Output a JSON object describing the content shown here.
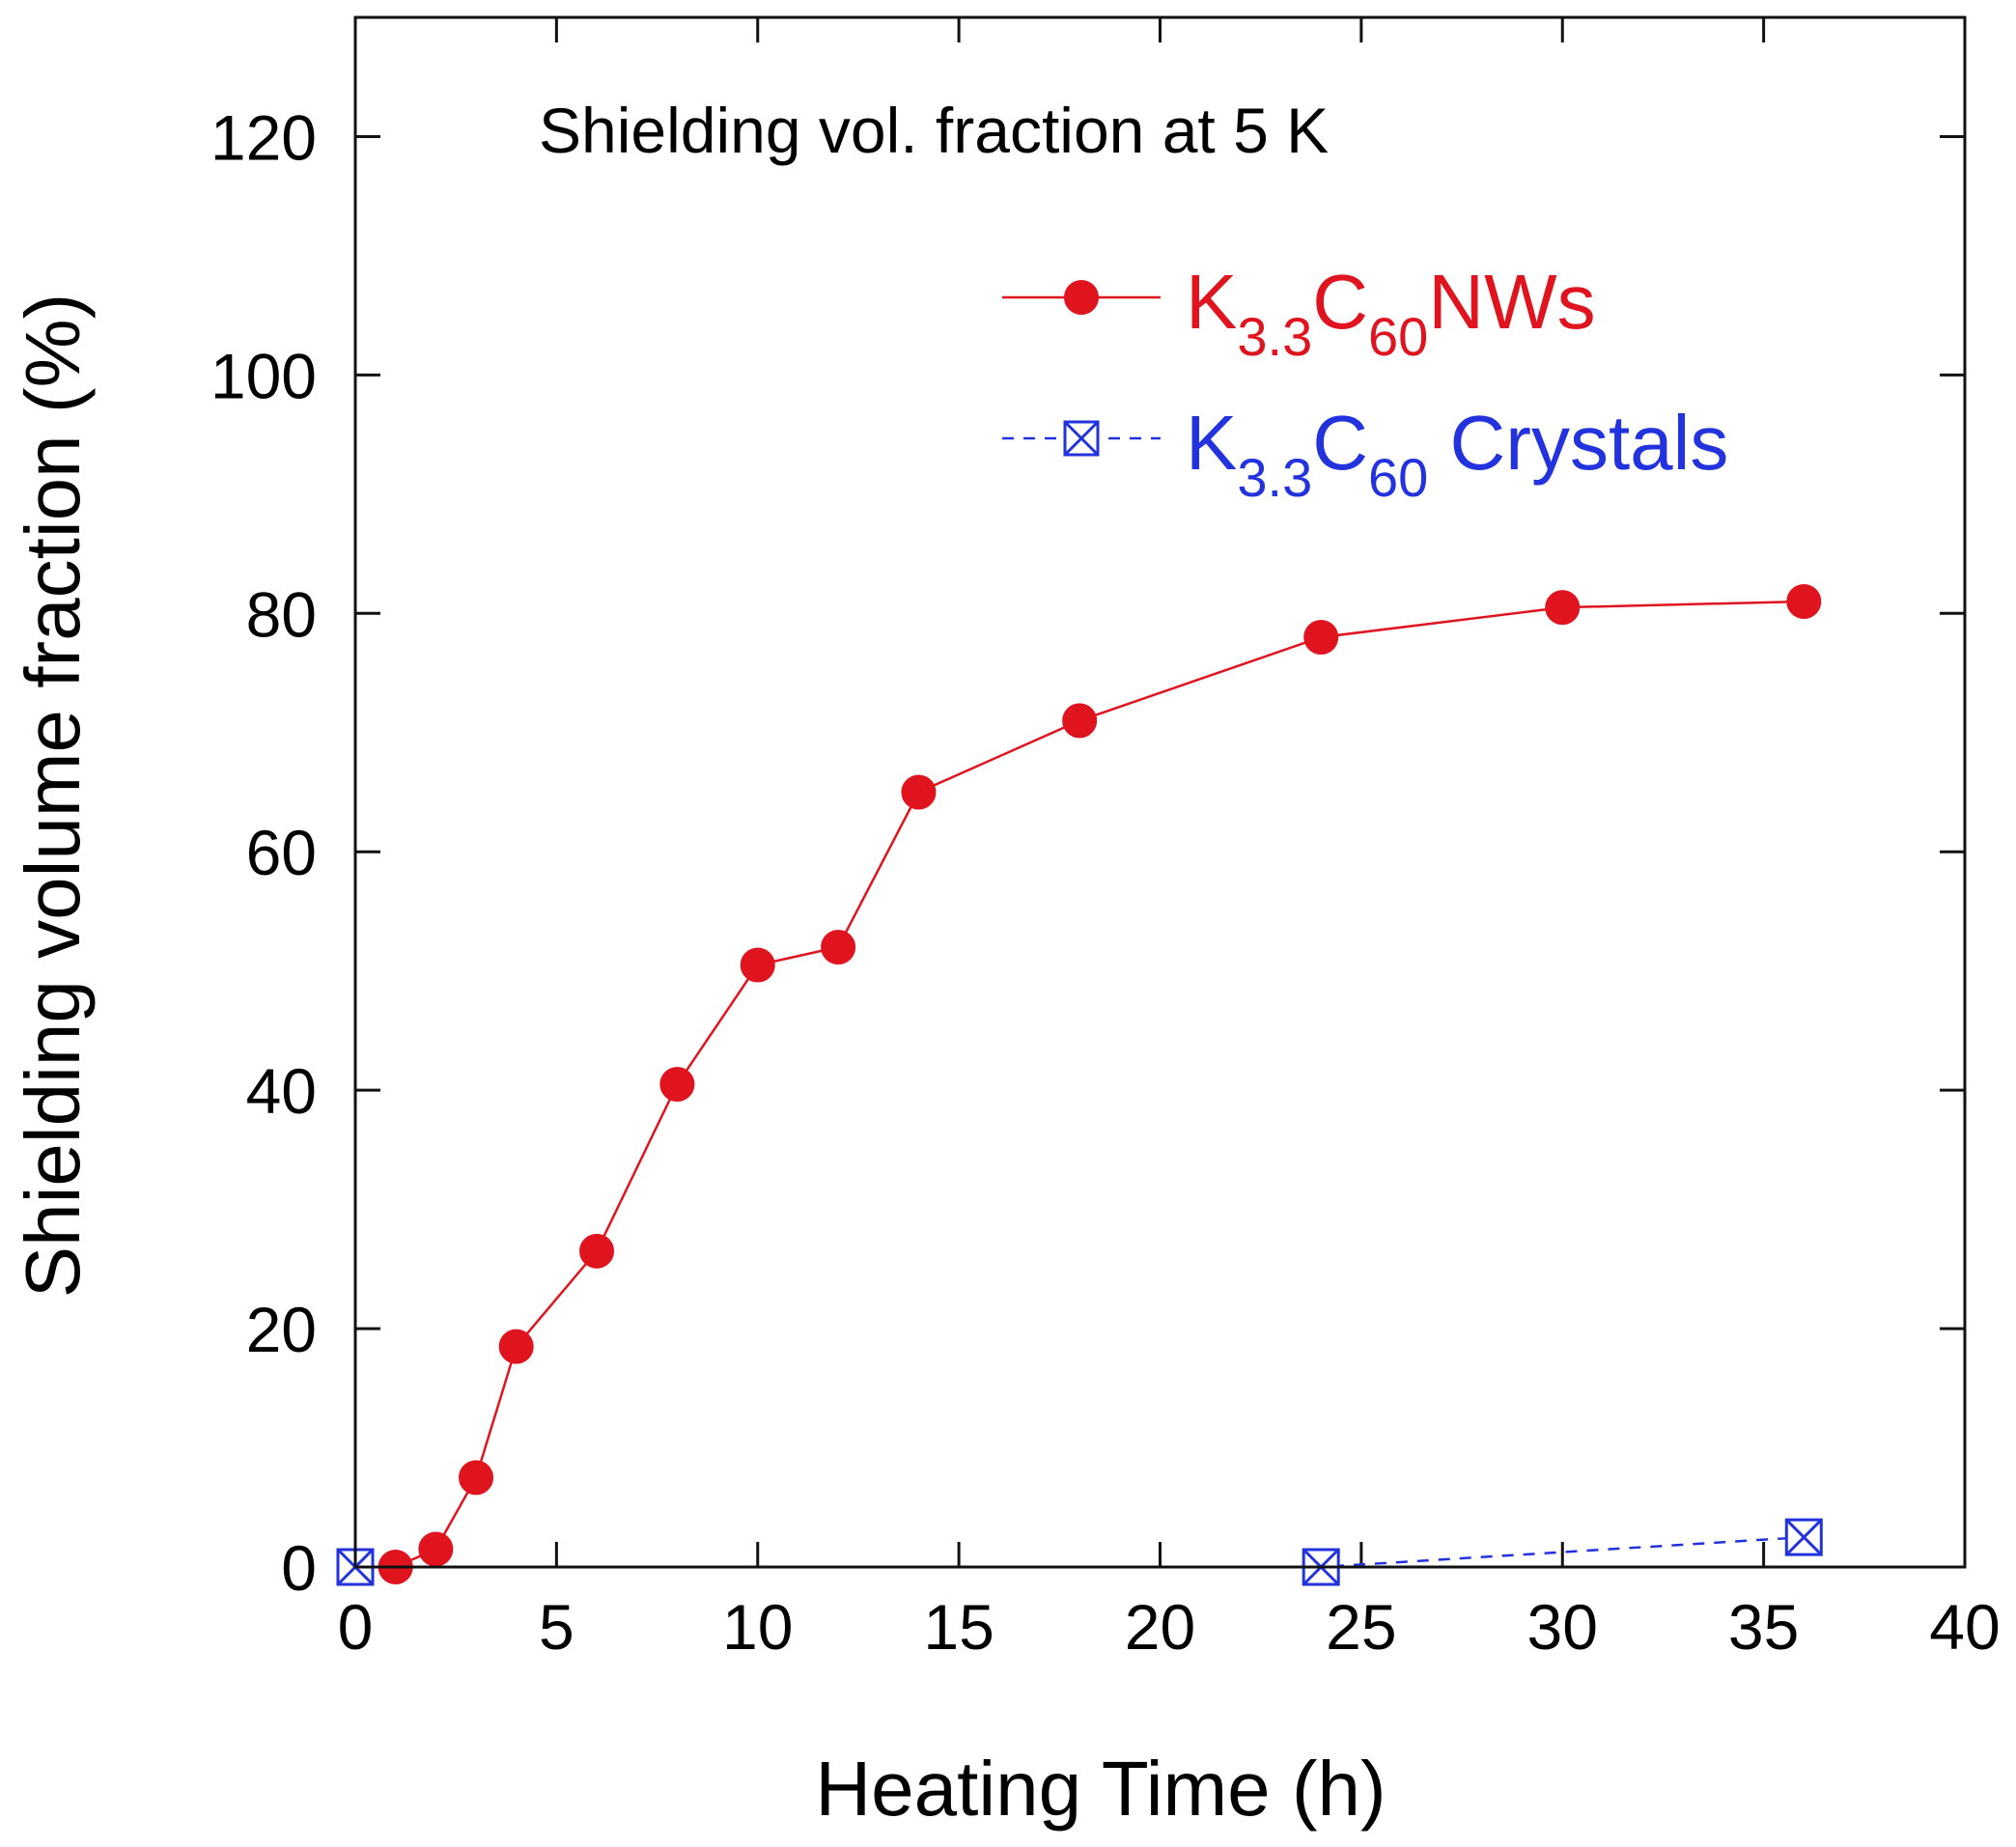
{
  "chart_data": {
    "type": "line",
    "title": "Shielding vol. fraction  at 5 K",
    "xlabel": "Heating Time (h)",
    "ylabel": "Shielding volume fraction (%)",
    "xlim": [
      0,
      40
    ],
    "ylim": [
      0,
      130
    ],
    "xticks": [
      0,
      5,
      10,
      15,
      20,
      25,
      30,
      35,
      40
    ],
    "yticks": [
      0,
      20,
      40,
      60,
      80,
      100,
      120
    ],
    "grid": false,
    "legend_position": "top-right",
    "series": [
      {
        "name": "K3.3C60NWs",
        "legend_parts": [
          [
            "K",
            ""
          ],
          [
            "3.3",
            "sub"
          ],
          [
            "C",
            ""
          ],
          [
            "60",
            "sub"
          ],
          [
            "NWs",
            ""
          ]
        ],
        "color": "#e0141e",
        "line_style": "solid",
        "marker": "filled-circle",
        "x": [
          1,
          2,
          3,
          4,
          6,
          8,
          10,
          12,
          14,
          18,
          24,
          30,
          36
        ],
        "y": [
          0,
          1.5,
          7.5,
          18.5,
          26.5,
          40.5,
          50.5,
          52,
          65,
          71,
          78,
          80.5,
          81
        ]
      },
      {
        "name": "K3.3C60 Crystals",
        "legend_parts": [
          [
            "K",
            ""
          ],
          [
            "3.3",
            "sub"
          ],
          [
            "C",
            ""
          ],
          [
            "60",
            "sub"
          ],
          [
            " Crystals",
            ""
          ]
        ],
        "color": "#2233dd",
        "line_style": "dashed",
        "marker": "crossed-square",
        "x": [
          0,
          24,
          36
        ],
        "y": [
          0,
          0,
          2.5
        ]
      }
    ]
  }
}
